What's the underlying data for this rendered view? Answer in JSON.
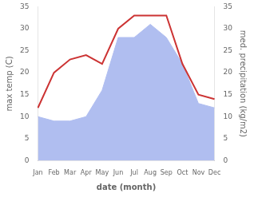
{
  "chart_data": {
    "type": "line",
    "xlabel": "date (month)",
    "ylabel": "max temp (C)",
    "y2label": "med. precipitation (kg/m2)",
    "categories": [
      "Jan",
      "Feb",
      "Mar",
      "Apr",
      "May",
      "Jun",
      "Jul",
      "Aug",
      "Sep",
      "Oct",
      "Nov",
      "Dec"
    ],
    "series": [
      {
        "type": "area",
        "color": "#b0bef0",
        "values": [
          10,
          9,
          9,
          10,
          16,
          28,
          28,
          31,
          28,
          22,
          13,
          12
        ]
      },
      {
        "type": "line",
        "color": "#cc3333",
        "axis": "y2",
        "values": [
          12,
          20,
          23,
          24,
          22,
          30,
          33,
          33,
          33,
          22,
          15,
          14
        ]
      }
    ],
    "ylim": [
      0,
      35
    ],
    "yticks": [
      0,
      5,
      10,
      15,
      20,
      25,
      30,
      35
    ],
    "y2lim": [
      0,
      35
    ],
    "y2ticks": [
      0,
      5,
      10,
      15,
      20,
      25,
      30,
      35
    ],
    "grid": false
  }
}
